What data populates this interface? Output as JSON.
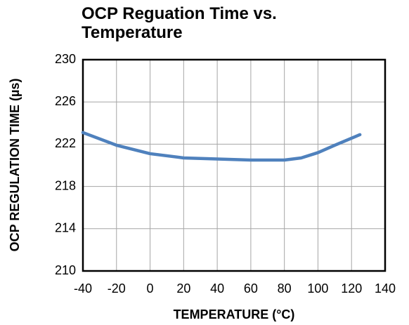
{
  "chart_data": {
    "type": "line",
    "title": "OCP Reguation Time vs. Temperature",
    "x_label": "TEMPERATURE (°C)",
    "y_label": "OCP REGULATION TIME (µs)",
    "x": [
      -40,
      -20,
      0,
      20,
      40,
      60,
      80,
      90,
      100,
      110,
      125
    ],
    "series": [
      {
        "name": "OCP Regulation Time",
        "color": "#4f81bd",
        "values": [
          223.1,
          221.9,
          221.1,
          220.7,
          220.6,
          220.5,
          220.5,
          220.7,
          221.2,
          221.9,
          222.9
        ]
      }
    ],
    "xlim": [
      -40,
      140
    ],
    "xticks": [
      -40,
      -20,
      0,
      20,
      40,
      60,
      80,
      100,
      120,
      140
    ],
    "ylim": [
      210,
      230
    ],
    "yticks": [
      210,
      214,
      218,
      222,
      226,
      230
    ],
    "grid": true,
    "legend": false
  }
}
